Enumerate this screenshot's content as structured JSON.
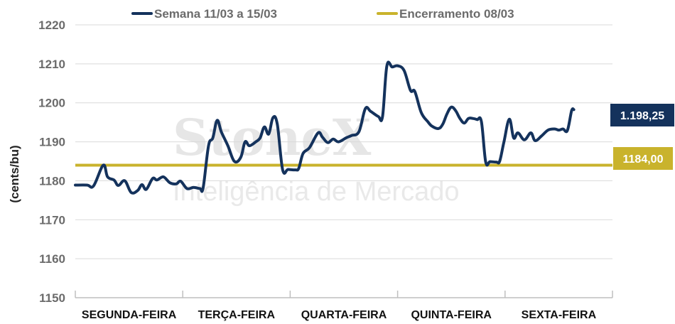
{
  "chart_data": {
    "type": "line",
    "ylabel": "(cents/bu)",
    "ylim": [
      1150,
      1220
    ],
    "yticks": [
      "1150",
      "1160",
      "1170",
      "1180",
      "1190",
      "1200",
      "1210",
      "1220"
    ],
    "categories": [
      "SEGUNDA-FEIRA",
      "TERÇA-FEIRA",
      "QUARTA-FEIRA",
      "QUINTA-FEIRA",
      "SEXTA-FEIRA"
    ],
    "x_range": [
      0,
      5
    ],
    "grid": true,
    "legend_position": "top",
    "series": [
      {
        "name": "Semana 11/03 a 15/03",
        "color": "#14325c",
        "last_value_label": "1.198,25",
        "points": [
          [
            0.0,
            1178.9
          ],
          [
            0.11,
            1178.9
          ],
          [
            0.17,
            1178.7
          ],
          [
            0.26,
            1184.0
          ],
          [
            0.3,
            1181.0
          ],
          [
            0.36,
            1180.2
          ],
          [
            0.4,
            1178.8
          ],
          [
            0.46,
            1180.0
          ],
          [
            0.52,
            1177.0
          ],
          [
            0.58,
            1177.5
          ],
          [
            0.62,
            1179.0
          ],
          [
            0.66,
            1177.8
          ],
          [
            0.72,
            1180.6
          ],
          [
            0.76,
            1180.2
          ],
          [
            0.82,
            1181.0
          ],
          [
            0.88,
            1179.5
          ],
          [
            0.94,
            1179.2
          ],
          [
            0.98,
            1179.9
          ],
          [
            1.04,
            1178.0
          ],
          [
            1.1,
            1178.3
          ],
          [
            1.16,
            1178.0
          ],
          [
            1.19,
            1178.2
          ],
          [
            1.24,
            1189.0
          ],
          [
            1.28,
            1191.0
          ],
          [
            1.32,
            1195.5
          ],
          [
            1.36,
            1192.5
          ],
          [
            1.42,
            1189.0
          ],
          [
            1.48,
            1185.0
          ],
          [
            1.54,
            1186.0
          ],
          [
            1.58,
            1190.0
          ],
          [
            1.62,
            1189.0
          ],
          [
            1.68,
            1190.0
          ],
          [
            1.72,
            1191.0
          ],
          [
            1.76,
            1193.8
          ],
          [
            1.8,
            1192.0
          ],
          [
            1.84,
            1196.2
          ],
          [
            1.88,
            1194.5
          ],
          [
            1.93,
            1182.8
          ],
          [
            1.98,
            1182.9
          ],
          [
            2.05,
            1182.8
          ],
          [
            2.08,
            1183.2
          ],
          [
            2.12,
            1187.0
          ],
          [
            2.18,
            1188.5
          ],
          [
            2.26,
            1192.3
          ],
          [
            2.3,
            1191.2
          ],
          [
            2.35,
            1189.8
          ],
          [
            2.4,
            1190.7
          ],
          [
            2.45,
            1190.0
          ],
          [
            2.52,
            1191.0
          ],
          [
            2.57,
            1191.6
          ],
          [
            2.64,
            1192.6
          ],
          [
            2.7,
            1198.5
          ],
          [
            2.75,
            1197.8
          ],
          [
            2.82,
            1196.5
          ],
          [
            2.86,
            1196.5
          ],
          [
            2.9,
            1209.5
          ],
          [
            2.95,
            1209.2
          ],
          [
            3.0,
            1209.5
          ],
          [
            3.06,
            1208.3
          ],
          [
            3.12,
            1203.2
          ],
          [
            3.16,
            1202.9
          ],
          [
            3.22,
            1197.5
          ],
          [
            3.28,
            1195.2
          ],
          [
            3.32,
            1194.0
          ],
          [
            3.38,
            1193.4
          ],
          [
            3.42,
            1194.5
          ],
          [
            3.46,
            1197.2
          ],
          [
            3.5,
            1198.9
          ],
          [
            3.54,
            1198.0
          ],
          [
            3.58,
            1196.0
          ],
          [
            3.62,
            1194.8
          ],
          [
            3.66,
            1196.0
          ],
          [
            3.7,
            1196.0
          ],
          [
            3.74,
            1195.7
          ],
          [
            3.78,
            1195.2
          ],
          [
            3.82,
            1184.8
          ],
          [
            3.86,
            1184.9
          ],
          [
            3.92,
            1184.8
          ],
          [
            3.95,
            1185.0
          ],
          [
            3.99,
            1190.0
          ],
          [
            4.04,
            1195.8
          ],
          [
            4.08,
            1191.0
          ],
          [
            4.12,
            1192.3
          ],
          [
            4.18,
            1190.5
          ],
          [
            4.24,
            1192.3
          ],
          [
            4.28,
            1190.3
          ],
          [
            4.34,
            1191.5
          ],
          [
            4.4,
            1193.0
          ],
          [
            4.46,
            1193.3
          ],
          [
            4.5,
            1193.0
          ],
          [
            4.54,
            1193.3
          ],
          [
            4.58,
            1192.9
          ],
          [
            4.62,
            1198.0
          ],
          [
            4.64,
            1198.25
          ]
        ]
      },
      {
        "name": "Encerramento 08/03",
        "color": "#c9b32c",
        "value": 1184.0,
        "value_label": "1184,00"
      }
    ]
  },
  "watermark": {
    "brand": "StoneX",
    "tagline": "Inteligência de Mercado"
  }
}
